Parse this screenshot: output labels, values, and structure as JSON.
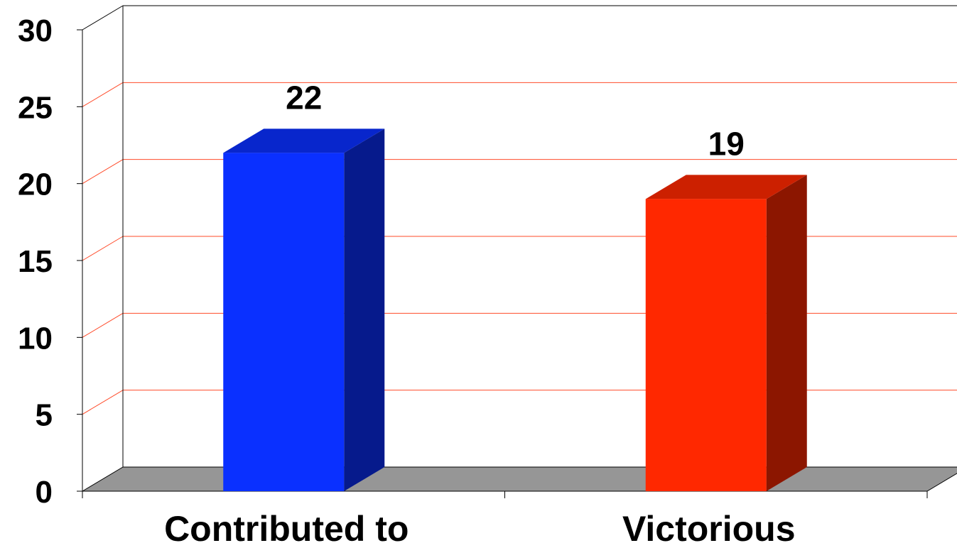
{
  "chart_data": {
    "type": "bar",
    "style": "3d-column",
    "categories": [
      "Contributed to",
      "Victorious"
    ],
    "values": [
      22,
      19
    ],
    "data_labels": [
      "22",
      "19"
    ],
    "bar_colors": [
      "#0a30ff",
      "#ff2800"
    ],
    "ylim": [
      0,
      30
    ],
    "yticks": [
      0,
      5,
      10,
      15,
      20,
      25,
      30
    ],
    "ytick_labels": [
      "0",
      "5",
      "10",
      "15",
      "20",
      "25",
      "30"
    ],
    "gridline_color": "#ff4b2a",
    "floor_color": "#969696",
    "grid": true,
    "legend": "none"
  }
}
